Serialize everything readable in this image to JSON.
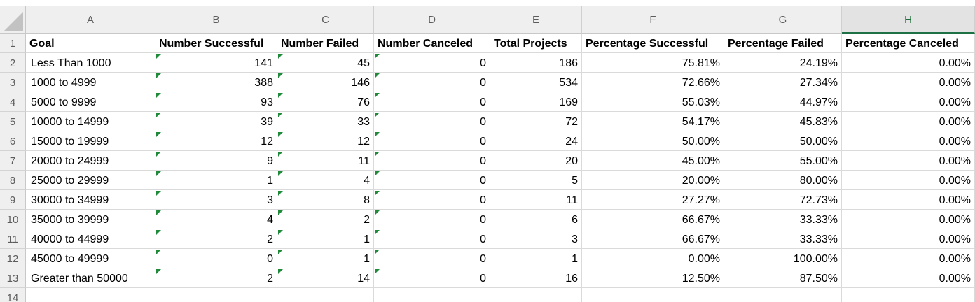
{
  "columns": [
    "A",
    "B",
    "C",
    "D",
    "E",
    "F",
    "G",
    "H"
  ],
  "selected_column": "H",
  "row_numbers": [
    "1",
    "2",
    "3",
    "4",
    "5",
    "6",
    "7",
    "8",
    "9",
    "10",
    "11",
    "12",
    "13",
    "14"
  ],
  "headers": [
    "Goal",
    "Number Successful",
    "Number Failed",
    "Number Canceled",
    "Total Projects",
    "Percentage Successful",
    "Percentage Failed",
    "Percentage Canceled"
  ],
  "rows": [
    [
      "Less Than 1000",
      "141",
      "45",
      "0",
      "186",
      "75.81%",
      "24.19%",
      "0.00%"
    ],
    [
      "1000 to 4999",
      "388",
      "146",
      "0",
      "534",
      "72.66%",
      "27.34%",
      "0.00%"
    ],
    [
      "5000 to 9999",
      "93",
      "76",
      "0",
      "169",
      "55.03%",
      "44.97%",
      "0.00%"
    ],
    [
      "10000 to 14999",
      "39",
      "33",
      "0",
      "72",
      "54.17%",
      "45.83%",
      "0.00%"
    ],
    [
      "15000 to 19999",
      "12",
      "12",
      "0",
      "24",
      "50.00%",
      "50.00%",
      "0.00%"
    ],
    [
      "20000 to 24999",
      "9",
      "11",
      "0",
      "20",
      "45.00%",
      "55.00%",
      "0.00%"
    ],
    [
      "25000 to 29999",
      "1",
      "4",
      "0",
      "5",
      "20.00%",
      "80.00%",
      "0.00%"
    ],
    [
      "30000 to 34999",
      "3",
      "8",
      "0",
      "11",
      "27.27%",
      "72.73%",
      "0.00%"
    ],
    [
      "35000 to 39999",
      "4",
      "2",
      "0",
      "6",
      "66.67%",
      "33.33%",
      "0.00%"
    ],
    [
      "40000 to 44999",
      "2",
      "1",
      "0",
      "3",
      "66.67%",
      "33.33%",
      "0.00%"
    ],
    [
      "45000 to 49999",
      "0",
      "1",
      "0",
      "1",
      "0.00%",
      "100.00%",
      "0.00%"
    ],
    [
      "Greater than 50000",
      "2",
      "14",
      "0",
      "16",
      "12.50%",
      "87.50%",
      "0.00%"
    ]
  ],
  "colors": {
    "header_bg": "#efefef",
    "selected_accent": "#1e7145",
    "error_indicator": "#1e8a3a",
    "gridline": "#dadada"
  },
  "icons": {
    "select_all": "select-all-triangle-icon",
    "cell_indicator": "number-stored-as-text-indicator-icon"
  }
}
